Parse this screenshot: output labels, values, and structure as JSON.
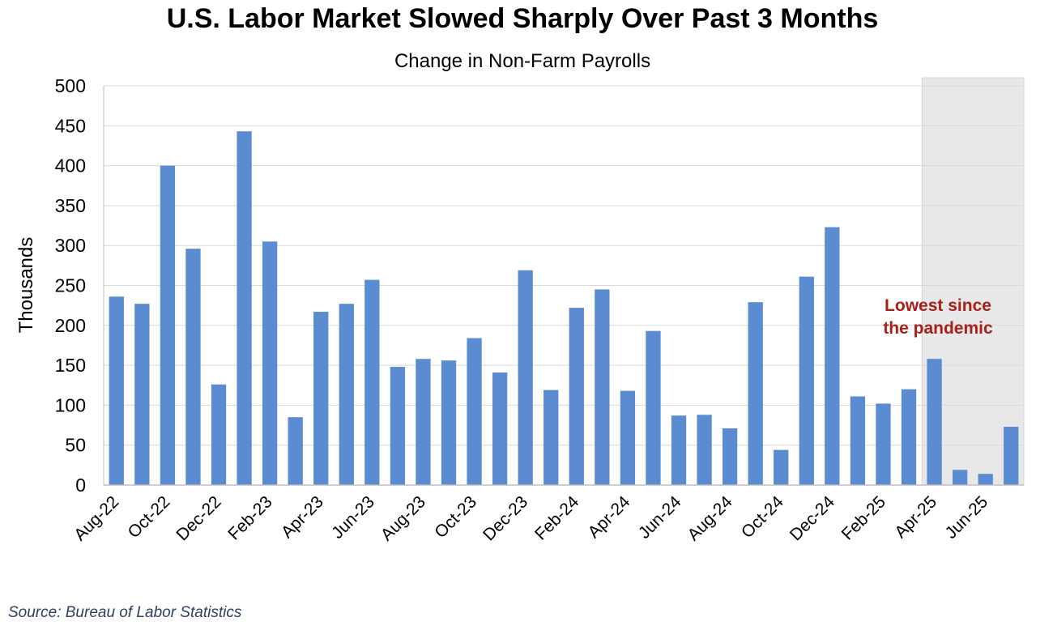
{
  "chart_data": {
    "type": "bar",
    "title": "U.S. Labor Market Slowed Sharply Over Past 3 Months",
    "subtitle": "Change in Non-Farm Payrolls",
    "xlabel": "",
    "ylabel": "Thousands",
    "ylim": [
      0,
      500
    ],
    "yticks": [
      0,
      50,
      100,
      150,
      200,
      250,
      300,
      350,
      400,
      450,
      500
    ],
    "grid": true,
    "bar_color": "#5b8bd0",
    "categories": [
      "Aug-22",
      "Sep-22",
      "Oct-22",
      "Nov-22",
      "Dec-22",
      "Jan-23",
      "Feb-23",
      "Mar-23",
      "Apr-23",
      "May-23",
      "Jun-23",
      "Jul-23",
      "Aug-23",
      "Sep-23",
      "Oct-23",
      "Nov-23",
      "Dec-23",
      "Jan-24",
      "Feb-24",
      "Mar-24",
      "Apr-24",
      "May-24",
      "Jun-24",
      "Jul-24",
      "Aug-24",
      "Sep-24",
      "Oct-24",
      "Nov-24",
      "Dec-24",
      "Jan-25",
      "Feb-25",
      "Mar-25",
      "Apr-25",
      "May-25",
      "Jun-25",
      "Jul-25"
    ],
    "values": [
      236,
      227,
      400,
      296,
      126,
      443,
      305,
      85,
      217,
      227,
      257,
      148,
      158,
      156,
      184,
      141,
      269,
      119,
      222,
      245,
      118,
      193,
      87,
      88,
      71,
      229,
      44,
      261,
      323,
      111,
      102,
      120,
      158,
      19,
      14,
      73
    ],
    "xtick_labels_shown": [
      "Aug-22",
      "Oct-22",
      "Dec-22",
      "Feb-23",
      "Apr-23",
      "Jun-23",
      "Aug-23",
      "Oct-23",
      "Dec-23",
      "Feb-24",
      "Apr-24",
      "Jun-24",
      "Aug-24",
      "Oct-24",
      "Dec-24",
      "Feb-25",
      "Apr-25",
      "Jun-25"
    ],
    "highlight": {
      "from": "Apr-25",
      "to": "Jul-25",
      "color": "#e8e8e8"
    },
    "annotation": "Lowest since the pandemic",
    "annotation_color": "#a8201a"
  },
  "source": "Source: Bureau of Labor Statistics"
}
